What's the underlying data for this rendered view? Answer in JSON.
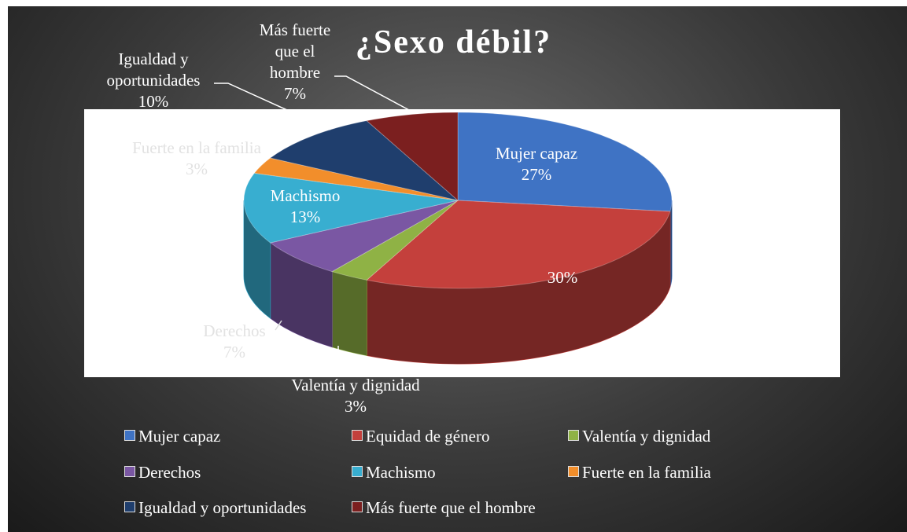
{
  "chart_data": {
    "type": "pie3d",
    "title": "¿Sexo débil?",
    "categories": [
      "Mujer capaz",
      "Equidad de género",
      "Valentía y dignidad",
      "Derechos",
      "Machismo",
      "Fuerte en la familia",
      "Igualdad y oportunidades",
      "Más fuerte que el hombre"
    ],
    "values": [
      27,
      30,
      3,
      7,
      13,
      3,
      10,
      7
    ],
    "value_labels": [
      "27%",
      "30%",
      "3%",
      "7%",
      "13%",
      "3%",
      "10%",
      "7%"
    ],
    "colors": [
      "#3f73c4",
      "#c4403c",
      "#8fb245",
      "#7a57a3",
      "#38aed0",
      "#f28e2b",
      "#1f3e6d",
      "#7b1f1f"
    ],
    "label_names": [
      true,
      false,
      true,
      true,
      true,
      true,
      true,
      true
    ],
    "legend": "bottom"
  }
}
